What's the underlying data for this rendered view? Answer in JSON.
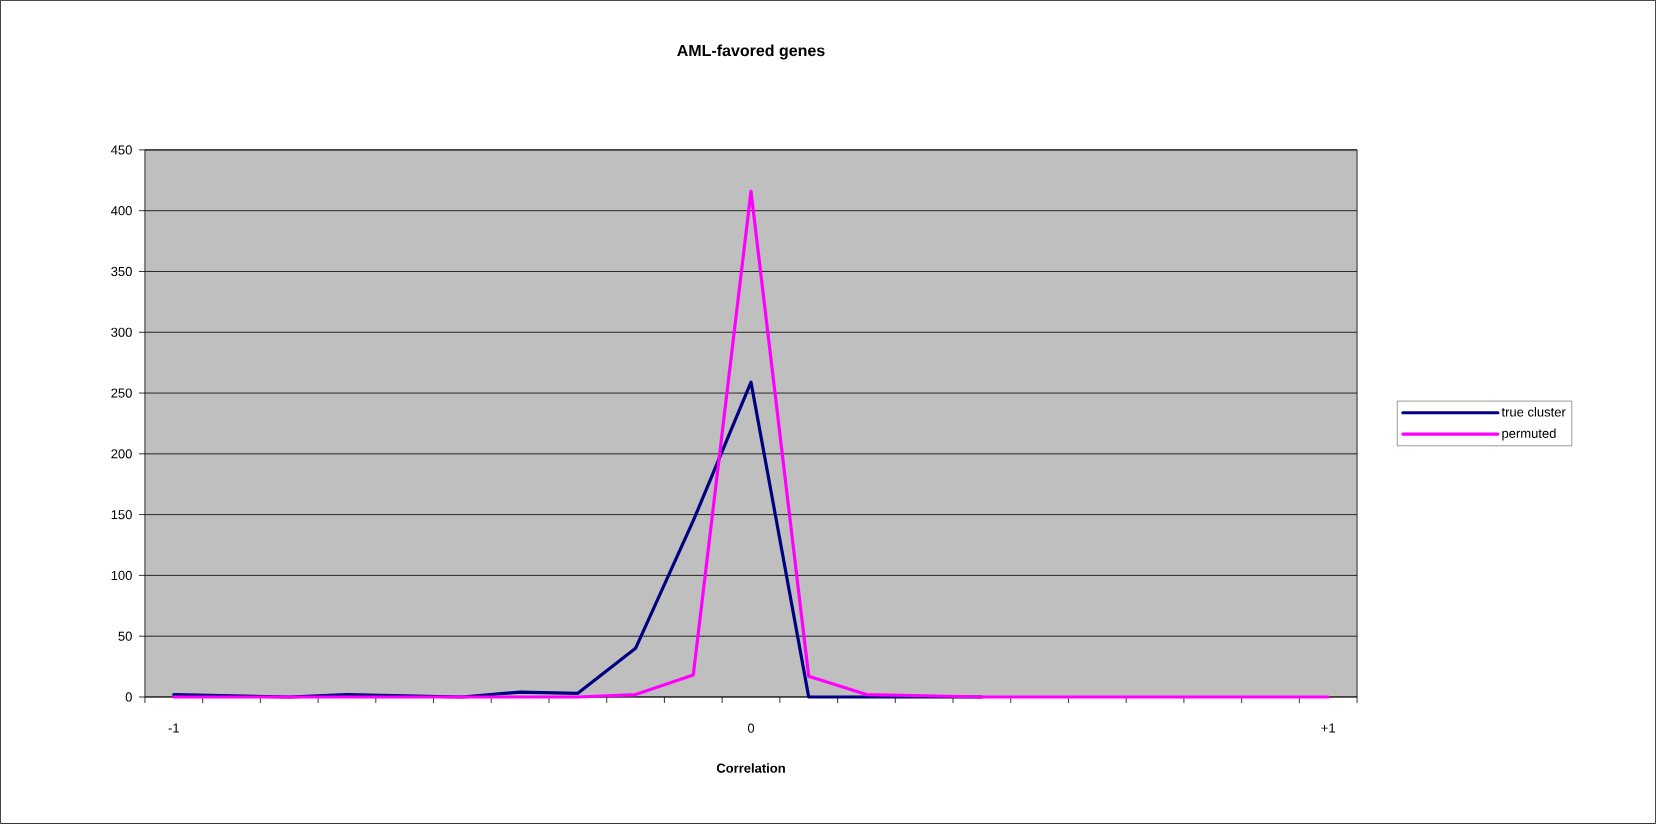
{
  "chart_data": {
    "type": "line",
    "title": "AML-favored genes",
    "xlabel": "Correlation",
    "categories": [
      "-1",
      null,
      null,
      null,
      null,
      null,
      null,
      null,
      null,
      null,
      "0",
      null,
      null,
      null,
      null,
      null,
      null,
      null,
      null,
      null,
      "+1"
    ],
    "series": [
      {
        "name": "true cluster",
        "color": "#000080",
        "values": [
          2,
          1,
          0,
          2,
          1,
          0,
          4,
          3,
          40,
          145,
          259,
          0,
          0,
          0,
          0,
          null,
          null,
          null,
          null,
          null,
          null
        ]
      },
      {
        "name": "permuted",
        "color": "#ff00ff",
        "values": [
          0,
          0,
          0,
          0,
          0,
          0,
          0,
          0,
          2,
          18,
          416,
          17,
          2,
          1,
          0,
          0,
          0,
          0,
          0,
          0,
          0
        ]
      }
    ],
    "ylim": [
      0,
      450
    ],
    "yticks": [
      0,
      50,
      100,
      150,
      200,
      250,
      300,
      350,
      400,
      450
    ],
    "grid": "y",
    "legend": "right",
    "marker": "none",
    "line_style": "solid"
  }
}
